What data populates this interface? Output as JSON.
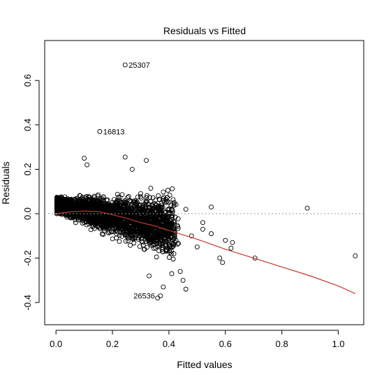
{
  "chart_data": {
    "type": "scatter",
    "title": "Residuals vs Fitted",
    "xlabel": "Fitted values",
    "ylabel": "Residuals",
    "xlim": [
      -0.04,
      1.09
    ],
    "ylim": [
      -0.5,
      0.78
    ],
    "x_ticks": [
      0.0,
      0.2,
      0.4,
      0.6,
      0.8,
      1.0
    ],
    "x_tick_labels": [
      "0.0",
      "0.2",
      "0.4",
      "0.6",
      "0.8",
      "1.0"
    ],
    "y_ticks": [
      -0.4,
      -0.2,
      0.0,
      0.2,
      0.4,
      0.6
    ],
    "y_tick_labels": [
      "-0.4",
      "-0.2",
      "0.0",
      "0.2",
      "0.4",
      "0.6"
    ],
    "zero_reference_line": true,
    "grid": false,
    "legend": "none",
    "point_style": "open circle",
    "labeled_points": [
      {
        "label": "25307",
        "x": 0.245,
        "y": 0.67
      },
      {
        "label": "16813",
        "x": 0.155,
        "y": 0.37
      },
      {
        "label": "26536",
        "x": 0.37,
        "y": -0.37
      }
    ],
    "outlying_points": [
      {
        "x": 0.55,
        "y": 0.03
      },
      {
        "x": 0.89,
        "y": 0.025
      },
      {
        "x": 1.06,
        "y": -0.19
      },
      {
        "x": 0.705,
        "y": -0.2
      },
      {
        "x": 0.6,
        "y": -0.12
      },
      {
        "x": 0.625,
        "y": -0.13
      },
      {
        "x": 0.55,
        "y": -0.09
      },
      {
        "x": 0.52,
        "y": -0.07
      },
      {
        "x": 0.48,
        "y": -0.1
      },
      {
        "x": 0.5,
        "y": -0.15
      },
      {
        "x": 0.45,
        "y": -0.3
      },
      {
        "x": 0.46,
        "y": -0.34
      },
      {
        "x": 0.41,
        "y": -0.27
      },
      {
        "x": 0.44,
        "y": -0.26
      },
      {
        "x": 0.33,
        "y": -0.28
      },
      {
        "x": 0.62,
        "y": -0.155
      },
      {
        "x": 0.58,
        "y": -0.2
      },
      {
        "x": 0.59,
        "y": -0.22
      },
      {
        "x": 0.42,
        "y": -0.05
      },
      {
        "x": 0.1,
        "y": 0.25
      },
      {
        "x": 0.11,
        "y": 0.22
      },
      {
        "x": 0.245,
        "y": 0.255
      },
      {
        "x": 0.32,
        "y": 0.24
      },
      {
        "x": 0.27,
        "y": 0.2
      },
      {
        "x": 0.38,
        "y": -0.33
      },
      {
        "x": 0.36,
        "y": -0.38
      },
      {
        "x": 0.52,
        "y": -0.04
      },
      {
        "x": 0.46,
        "y": 0.02
      }
    ],
    "smoother": {
      "color": "#c0392b",
      "x": [
        0.0,
        0.05,
        0.1,
        0.15,
        0.2,
        0.25,
        0.3,
        0.35,
        0.4,
        0.5,
        0.6,
        0.7,
        0.8,
        0.9,
        1.0,
        1.06
      ],
      "y": [
        0.0,
        0.008,
        0.012,
        0.01,
        -0.005,
        -0.02,
        -0.04,
        -0.055,
        -0.075,
        -0.115,
        -0.16,
        -0.2,
        -0.24,
        -0.28,
        -0.325,
        -0.36
      ]
    }
  }
}
